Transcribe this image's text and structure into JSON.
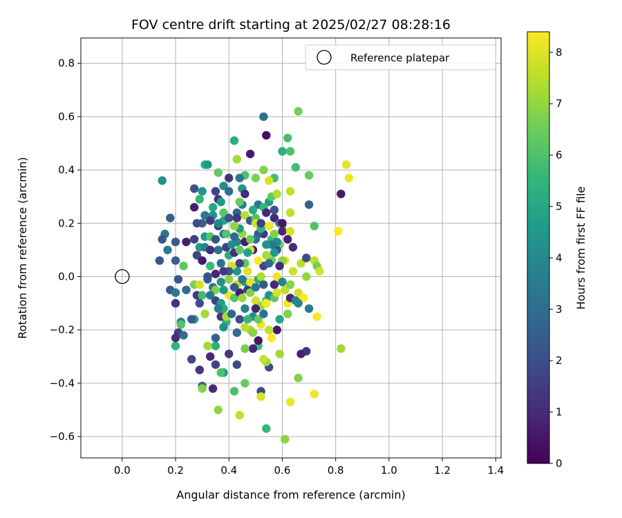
{
  "chart_data": {
    "type": "scatter",
    "title": "FOV centre drift starting at 2025/02/27 08:28:16",
    "xlabel": "Angular distance from reference (arcmin)",
    "ylabel": "Rotation from reference (arcmin)",
    "xlim": [
      -0.155,
      1.42
    ],
    "ylim": [
      -0.68,
      0.895
    ],
    "xticks": [
      0.0,
      0.2,
      0.4,
      0.6,
      0.8,
      1.0,
      1.2,
      1.4
    ],
    "xtick_labels": [
      "0.0",
      "0.2",
      "0.4",
      "0.6",
      "0.8",
      "1.0",
      "1.2",
      "1.4"
    ],
    "yticks": [
      -0.6,
      -0.4,
      -0.2,
      0.0,
      0.2,
      0.4,
      0.6,
      0.8
    ],
    "ytick_labels": [
      "−0.6",
      "−0.4",
      "−0.2",
      "0.0",
      "0.2",
      "0.4",
      "0.6",
      "0.8"
    ],
    "grid": true,
    "legend": {
      "placement": "top-right",
      "entries": [
        {
          "label": "Reference platepar",
          "marker": "open-circle"
        }
      ]
    },
    "reference_point": {
      "x": 0.0,
      "y": 0.0
    },
    "colorbar": {
      "label": "Hours from first FF file",
      "colormap": "viridis",
      "range": [
        0,
        8.4
      ],
      "ticks": [
        0,
        1,
        2,
        3,
        4,
        5,
        6,
        7,
        8
      ],
      "tick_labels": [
        "0",
        "1",
        "2",
        "3",
        "4",
        "5",
        "6",
        "7",
        "8"
      ]
    },
    "colormap_stops": [
      "#440154",
      "#482878",
      "#3e4989",
      "#31688e",
      "#26828e",
      "#1f9e89",
      "#35b779",
      "#6ece58",
      "#b5de2b",
      "#fde725"
    ],
    "points": [
      [
        0.53,
        0.6,
        3.2
      ],
      [
        0.54,
        0.53,
        0.3
      ],
      [
        0.66,
        0.62,
        6.6
      ],
      [
        0.62,
        0.52,
        5.9
      ],
      [
        0.42,
        0.51,
        5.2
      ],
      [
        0.48,
        0.46,
        0.6
      ],
      [
        0.6,
        0.47,
        5.3
      ],
      [
        0.63,
        0.47,
        6.0
      ],
      [
        0.43,
        0.44,
        7.2
      ],
      [
        0.31,
        0.42,
        5.3
      ],
      [
        0.32,
        0.42,
        4.5
      ],
      [
        0.65,
        0.41,
        5.8
      ],
      [
        0.84,
        0.42,
        8.1
      ],
      [
        0.85,
        0.37,
        8.2
      ],
      [
        0.82,
        0.31,
        0.6
      ],
      [
        0.7,
        0.27,
        2.6
      ],
      [
        0.7,
        0.38,
        6.4
      ],
      [
        0.57,
        0.37,
        5.8
      ],
      [
        0.55,
        0.36,
        7.9
      ],
      [
        0.53,
        0.4,
        6.8
      ],
      [
        0.46,
        0.38,
        6.0
      ],
      [
        0.44,
        0.37,
        3.4
      ],
      [
        0.4,
        0.37,
        1.3
      ],
      [
        0.36,
        0.39,
        6.3
      ],
      [
        0.38,
        0.34,
        4.1
      ],
      [
        0.4,
        0.32,
        3.0
      ],
      [
        0.45,
        0.33,
        4.3
      ],
      [
        0.5,
        0.37,
        6.7
      ],
      [
        0.46,
        0.31,
        1.0
      ],
      [
        0.15,
        0.36,
        4.2
      ],
      [
        0.18,
        0.22,
        2.6
      ],
      [
        0.16,
        0.16,
        3.3
      ],
      [
        0.15,
        0.14,
        2.3
      ],
      [
        0.17,
        0.1,
        3.6
      ],
      [
        0.14,
        0.06,
        2.3
      ],
      [
        0.2,
        0.13,
        2.4
      ],
      [
        0.24,
        0.13,
        0.7
      ],
      [
        0.2,
        0.06,
        2.6
      ],
      [
        0.23,
        0.04,
        6.2
      ],
      [
        0.21,
        -0.01,
        2.3
      ],
      [
        0.18,
        -0.05,
        2.3
      ],
      [
        0.2,
        -0.06,
        3.5
      ],
      [
        0.24,
        -0.05,
        2.9
      ],
      [
        0.2,
        -0.1,
        1.2
      ],
      [
        0.2,
        -0.26,
        5.4
      ],
      [
        0.22,
        -0.17,
        3.8
      ],
      [
        0.22,
        -0.18,
        6.1
      ],
      [
        0.21,
        -0.21,
        1.5
      ],
      [
        0.2,
        -0.23,
        1.1
      ],
      [
        0.23,
        -0.22,
        3.0
      ],
      [
        0.26,
        -0.31,
        1.8
      ],
      [
        0.29,
        -0.35,
        1.3
      ],
      [
        0.3,
        -0.41,
        2.7
      ],
      [
        0.3,
        -0.42,
        6.8
      ],
      [
        0.34,
        -0.42,
        1.0
      ],
      [
        0.33,
        -0.3,
        1.0
      ],
      [
        0.35,
        -0.33,
        1.7
      ],
      [
        0.35,
        -0.26,
        5.3
      ],
      [
        0.32,
        -0.26,
        7.2
      ],
      [
        0.35,
        -0.23,
        2.6
      ],
      [
        0.38,
        -0.36,
        4.4
      ],
      [
        0.37,
        -0.36,
        6.0
      ],
      [
        0.36,
        -0.5,
        6.9
      ],
      [
        0.42,
        -0.43,
        6.0
      ],
      [
        0.44,
        -0.52,
        7.6
      ],
      [
        0.46,
        -0.4,
        6.4
      ],
      [
        0.52,
        -0.43,
        1.9
      ],
      [
        0.52,
        -0.45,
        7.9
      ],
      [
        0.54,
        -0.57,
        5.6
      ],
      [
        0.61,
        -0.61,
        6.9
      ],
      [
        0.63,
        -0.47,
        8.2
      ],
      [
        0.66,
        -0.38,
        6.8
      ],
      [
        0.72,
        -0.44,
        8.2
      ],
      [
        0.82,
        -0.27,
        7.2
      ],
      [
        0.69,
        -0.28,
        1.2
      ],
      [
        0.67,
        -0.29,
        0.7
      ],
      [
        0.59,
        -0.29,
        7.2
      ],
      [
        0.55,
        -0.34,
        2.0
      ],
      [
        0.54,
        -0.32,
        7.1
      ],
      [
        0.53,
        -0.31,
        7.7
      ],
      [
        0.56,
        -0.23,
        8.4
      ],
      [
        0.58,
        -0.2,
        0.5
      ],
      [
        0.52,
        -0.18,
        8.2
      ],
      [
        0.51,
        -0.26,
        5.8
      ],
      [
        0.49,
        -0.27,
        0.9
      ],
      [
        0.48,
        -0.2,
        7.3
      ],
      [
        0.46,
        -0.19,
        7.5
      ],
      [
        0.43,
        -0.21,
        2.9
      ],
      [
        0.39,
        -0.17,
        5.4
      ],
      [
        0.38,
        -0.19,
        4.3
      ],
      [
        0.4,
        -0.29,
        1.4
      ],
      [
        0.43,
        -0.33,
        1.8
      ],
      [
        0.27,
        -0.16,
        4.8
      ],
      [
        0.26,
        -0.16,
        2.4
      ],
      [
        0.28,
        -0.07,
        1.4
      ],
      [
        0.27,
        -0.03,
        6.7
      ],
      [
        0.29,
        -0.03,
        7.9
      ],
      [
        0.3,
        -0.07,
        5.8
      ],
      [
        0.32,
        -0.01,
        2.7
      ],
      [
        0.33,
        0.04,
        5.7
      ],
      [
        0.28,
        0.08,
        1.8
      ],
      [
        0.3,
        0.06,
        0.6
      ],
      [
        0.29,
        0.11,
        4.6
      ],
      [
        0.27,
        0.14,
        1.6
      ],
      [
        0.31,
        0.15,
        4.5
      ],
      [
        0.33,
        0.15,
        6.1
      ],
      [
        0.3,
        0.2,
        2.6
      ],
      [
        0.31,
        0.23,
        3.4
      ],
      [
        0.28,
        0.2,
        1.9
      ],
      [
        0.27,
        0.26,
        0.8
      ],
      [
        0.29,
        0.29,
        5.6
      ],
      [
        0.27,
        0.33,
        2.2
      ],
      [
        0.3,
        0.32,
        4.5
      ],
      [
        0.35,
        0.32,
        1.8
      ],
      [
        0.34,
        0.26,
        5.0
      ],
      [
        0.36,
        0.29,
        1.2
      ],
      [
        0.37,
        0.28,
        4.6
      ],
      [
        0.34,
        0.23,
        4.3
      ],
      [
        0.38,
        0.21,
        4.8
      ],
      [
        0.38,
        0.24,
        6.2
      ],
      [
        0.36,
        0.19,
        1.5
      ],
      [
        0.38,
        0.16,
        3.6
      ],
      [
        0.35,
        0.14,
        2.1
      ],
      [
        0.36,
        0.1,
        3.0
      ],
      [
        0.39,
        0.11,
        1.5
      ],
      [
        0.41,
        0.12,
        4.1
      ],
      [
        0.4,
        0.08,
        5.2
      ],
      [
        0.42,
        0.09,
        1.2
      ],
      [
        0.43,
        0.13,
        3.9
      ],
      [
        0.44,
        0.1,
        6.3
      ],
      [
        0.45,
        0.16,
        7.1
      ],
      [
        0.46,
        0.13,
        0.7
      ],
      [
        0.44,
        0.18,
        4.6
      ],
      [
        0.42,
        0.19,
        7.0
      ],
      [
        0.4,
        0.22,
        2.1
      ],
      [
        0.43,
        0.24,
        2.8
      ],
      [
        0.45,
        0.27,
        3.4
      ],
      [
        0.44,
        0.28,
        6.4
      ],
      [
        0.46,
        0.23,
        7.5
      ],
      [
        0.48,
        0.21,
        2.4
      ],
      [
        0.5,
        0.22,
        6.1
      ],
      [
        0.51,
        0.27,
        3.3
      ],
      [
        0.53,
        0.26,
        5.6
      ],
      [
        0.55,
        0.28,
        4.6
      ],
      [
        0.54,
        0.24,
        0.9
      ],
      [
        0.56,
        0.3,
        6.3
      ],
      [
        0.57,
        0.25,
        2.2
      ],
      [
        0.58,
        0.31,
        7.4
      ],
      [
        0.57,
        0.22,
        1.0
      ],
      [
        0.59,
        0.2,
        3.0
      ],
      [
        0.6,
        0.19,
        6.6
      ],
      [
        0.63,
        0.24,
        7.6
      ],
      [
        0.63,
        0.32,
        7.6
      ],
      [
        0.6,
        0.17,
        0.9
      ],
      [
        0.63,
        0.17,
        7.9
      ],
      [
        0.62,
        0.14,
        0.8
      ],
      [
        0.59,
        0.12,
        6.5
      ],
      [
        0.58,
        0.1,
        2.1
      ],
      [
        0.61,
        0.06,
        8.1
      ],
      [
        0.6,
        0.06,
        6.9
      ],
      [
        0.59,
        0.04,
        1.0
      ],
      [
        0.57,
        0.09,
        4.5
      ],
      [
        0.56,
        0.06,
        6.5
      ],
      [
        0.54,
        0.08,
        7.3
      ],
      [
        0.53,
        0.04,
        1.8
      ],
      [
        0.51,
        0.06,
        8.4
      ],
      [
        0.49,
        0.1,
        0.6
      ],
      [
        0.48,
        0.1,
        7.9
      ],
      [
        0.47,
        0.09,
        4.8
      ],
      [
        0.46,
        0.05,
        6.2
      ],
      [
        0.44,
        0.05,
        1.6
      ],
      [
        0.43,
        0.02,
        4.4
      ],
      [
        0.41,
        0.04,
        7.8
      ],
      [
        0.4,
        0.02,
        2.4
      ],
      [
        0.38,
        0.02,
        1.4
      ],
      [
        0.37,
        -0.02,
        4.2
      ],
      [
        0.35,
        0.01,
        0.9
      ],
      [
        0.34,
        -0.04,
        3.2
      ],
      [
        0.35,
        -0.09,
        1.6
      ],
      [
        0.37,
        -0.1,
        4.6
      ],
      [
        0.38,
        -0.12,
        5.1
      ],
      [
        0.36,
        -0.12,
        3.7
      ],
      [
        0.37,
        -0.15,
        1.3
      ],
      [
        0.39,
        -0.15,
        7.3
      ],
      [
        0.41,
        -0.14,
        2.8
      ],
      [
        0.4,
        -0.07,
        8.2
      ],
      [
        0.42,
        -0.08,
        6.1
      ],
      [
        0.44,
        -0.06,
        0.7
      ],
      [
        0.43,
        -0.03,
        7.6
      ],
      [
        0.46,
        -0.02,
        4.7
      ],
      [
        0.47,
        -0.05,
        1.4
      ],
      [
        0.48,
        -0.02,
        8.1
      ],
      [
        0.48,
        -0.06,
        6.8
      ],
      [
        0.5,
        -0.04,
        3.3
      ],
      [
        0.51,
        -0.01,
        5.2
      ],
      [
        0.52,
        0.0,
        7.4
      ],
      [
        0.53,
        -0.03,
        2.5
      ],
      [
        0.54,
        -0.09,
        5.9
      ],
      [
        0.52,
        -0.11,
        7.1
      ],
      [
        0.5,
        -0.09,
        7.8
      ],
      [
        0.5,
        -0.12,
        0.8
      ],
      [
        0.49,
        -0.15,
        4.2
      ],
      [
        0.51,
        -0.16,
        6.4
      ],
      [
        0.53,
        -0.14,
        3.1
      ],
      [
        0.54,
        -0.1,
        8.3
      ],
      [
        0.55,
        -0.07,
        4.2
      ],
      [
        0.57,
        -0.08,
        6.3
      ],
      [
        0.58,
        -0.06,
        7.9
      ],
      [
        0.57,
        -0.03,
        1.0
      ],
      [
        0.58,
        0.0,
        8.2
      ],
      [
        0.6,
        -0.02,
        3.8
      ],
      [
        0.61,
        -0.05,
        7.6
      ],
      [
        0.62,
        -0.1,
        8.3
      ],
      [
        0.63,
        -0.08,
        0.9
      ],
      [
        0.62,
        -0.14,
        6.7
      ],
      [
        0.65,
        -0.09,
        3.6
      ],
      [
        0.66,
        -0.06,
        7.8
      ],
      [
        0.68,
        -0.08,
        8.4
      ],
      [
        0.7,
        -0.12,
        3.5
      ],
      [
        0.73,
        -0.15,
        8.3
      ],
      [
        0.67,
        0.05,
        7.5
      ],
      [
        0.69,
        0.07,
        2.0
      ],
      [
        0.72,
        0.06,
        7.6
      ],
      [
        0.73,
        0.04,
        6.6
      ],
      [
        0.74,
        0.02,
        7.9
      ],
      [
        0.69,
        0.0,
        7.0
      ],
      [
        0.72,
        0.19,
        6.1
      ],
      [
        0.81,
        0.17,
        8.4
      ],
      [
        0.64,
        0.11,
        1.0
      ],
      [
        0.6,
        0.2,
        0.5
      ],
      [
        0.55,
        0.19,
        8.2
      ],
      [
        0.53,
        0.16,
        1.4
      ],
      [
        0.51,
        0.16,
        2.2
      ],
      [
        0.5,
        0.14,
        3.1
      ],
      [
        0.48,
        0.14,
        6.4
      ],
      [
        0.5,
        0.2,
        7.8
      ],
      [
        0.52,
        0.18,
        5.3
      ],
      [
        0.56,
        0.14,
        5.7
      ],
      [
        0.57,
        0.16,
        6.8
      ],
      [
        0.58,
        0.13,
        4.0
      ],
      [
        0.56,
        0.12,
        3.5
      ],
      [
        0.55,
        0.05,
        2.9
      ],
      [
        0.47,
        0.02,
        8.0
      ],
      [
        0.45,
        -0.01,
        3.6
      ],
      [
        0.42,
        -0.04,
        2.4
      ],
      [
        0.4,
        -0.01,
        6.9
      ],
      [
        0.38,
        -0.05,
        4.4
      ],
      [
        0.35,
        -0.05,
        6.7
      ],
      [
        0.33,
        -0.07,
        3.3
      ],
      [
        0.32,
        0.0,
        2.1
      ],
      [
        0.31,
        -0.14,
        7.2
      ],
      [
        0.29,
        -0.1,
        2.0
      ],
      [
        0.31,
        0.11,
        3.7
      ],
      [
        0.33,
        0.21,
        1.4
      ],
      [
        0.37,
        0.05,
        3.0
      ],
      [
        0.44,
        -0.16,
        1.9
      ],
      [
        0.46,
        -0.12,
        3.7
      ],
      [
        0.47,
        -0.16,
        5.6
      ],
      [
        0.49,
        -0.21,
        6.9
      ],
      [
        0.45,
        -0.08,
        7.2
      ],
      [
        0.46,
        -0.27,
        6.6
      ],
      [
        0.51,
        -0.24,
        0.5
      ],
      [
        0.55,
        -0.2,
        7.6
      ],
      [
        0.59,
        -0.16,
        5.0
      ],
      [
        0.63,
        -0.03,
        6.8
      ],
      [
        0.64,
        0.02,
        7.8
      ],
      [
        0.66,
        -0.1,
        3.8
      ],
      [
        0.43,
        0.22,
        1.3
      ],
      [
        0.49,
        0.25,
        5.1
      ],
      [
        0.52,
        0.2,
        1.6
      ],
      [
        0.54,
        0.12,
        4.3
      ],
      [
        0.36,
        0.2,
        3.9
      ],
      [
        0.39,
        0.16,
        6.1
      ],
      [
        0.42,
        0.15,
        2.9
      ],
      [
        0.33,
        0.1,
        1.1
      ]
    ]
  }
}
